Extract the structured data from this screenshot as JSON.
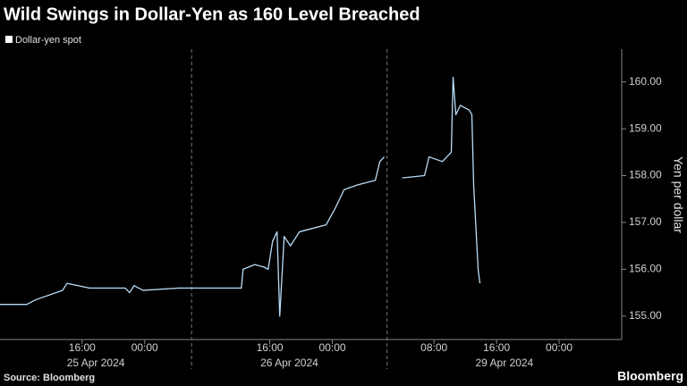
{
  "chart_data": {
    "type": "line",
    "title": "Wild Swings in Dollar-Yen as 160 Level Breached",
    "y_label": "Yen per dollar",
    "source": "Source: Bloomberg",
    "brand": "Bloomberg",
    "series": [
      {
        "name": "Dollar-yen spot",
        "color": "#b9dcf7",
        "x": [
          5.5,
          8.93,
          10.07,
          13.5,
          14.07,
          16.93,
          21.5,
          22.07,
          22.64,
          23.79,
          28.36,
          30.07,
          36.36,
          36.59,
          38.07,
          39.21,
          39.79,
          40.36,
          40.93,
          41.27,
          41.84,
          42.64,
          43.79,
          44.93,
          46.07,
          47.21,
          48.36,
          49.5,
          51.21,
          53.5,
          54.07,
          54.64,
          null,
          56.93,
          59.79,
          60.36,
          62.07,
          63.21,
          63.44,
          63.79,
          64.36,
          65.5,
          65.84,
          66.07,
          66.64,
          66.87
        ],
        "values": [
          155.25,
          155.25,
          155.35,
          155.55,
          155.7,
          155.6,
          155.6,
          155.5,
          155.65,
          155.55,
          155.6,
          155.6,
          155.6,
          156.0,
          156.1,
          156.05,
          156.0,
          156.6,
          156.8,
          155.0,
          156.7,
          156.5,
          156.8,
          156.85,
          156.9,
          156.95,
          157.3,
          157.7,
          157.8,
          157.9,
          158.3,
          158.4,
          null,
          157.95,
          158.0,
          158.4,
          158.3,
          158.5,
          160.1,
          159.3,
          159.5,
          159.4,
          159.3,
          157.8,
          156.0,
          155.7
        ]
      }
    ],
    "xlim": [
      5.5,
      85
    ],
    "xticks": [
      {
        "value": 16,
        "label": "16:00"
      },
      {
        "value": 24,
        "label": "00:00"
      },
      {
        "value": 40,
        "label": "16:00"
      },
      {
        "value": 48,
        "label": "00:00"
      },
      {
        "value": 61,
        "label": "08:00"
      },
      {
        "value": 69,
        "label": "16:00"
      },
      {
        "value": 77,
        "label": "00:00"
      }
    ],
    "days": [
      "25 Apr 2024",
      "26 Apr 2024",
      "29 Apr 2024"
    ],
    "day_breaks": [
      30,
      55
    ],
    "ylim": [
      154.5,
      160.7
    ],
    "yticks": [
      {
        "value": 155,
        "label": "155.00"
      },
      {
        "value": 156,
        "label": "156.00"
      },
      {
        "value": 157,
        "label": "157.00"
      },
      {
        "value": 158,
        "label": "158.00"
      },
      {
        "value": 159,
        "label": "159.00"
      },
      {
        "value": 160,
        "label": "160.00"
      }
    ]
  }
}
